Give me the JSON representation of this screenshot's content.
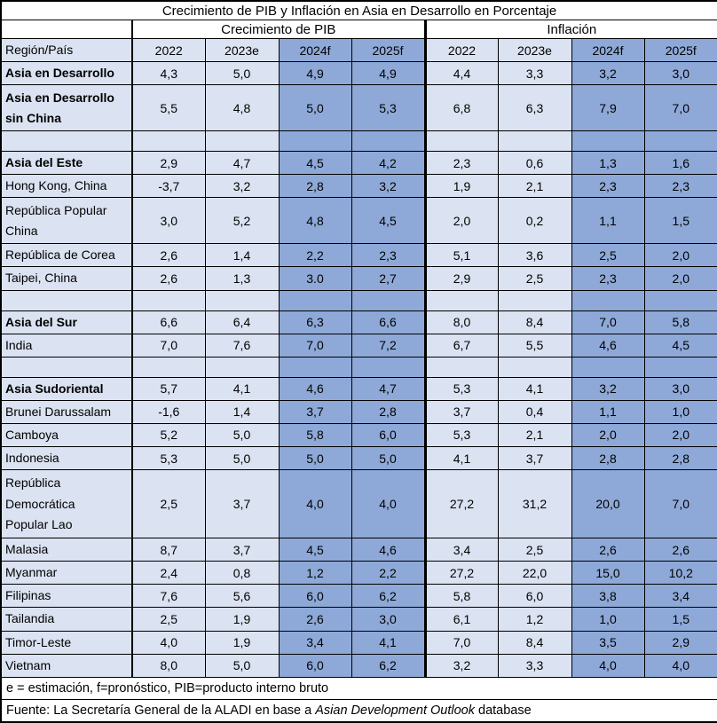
{
  "colors": {
    "light_blue": "#dbe2f1",
    "dark_blue": "#8ea9d8",
    "border": "#000000",
    "background": "#ffffff"
  },
  "chart_data": {
    "type": "table",
    "title": "Crecimiento de PIB y Inflación en Asia en Desarrollo en Porcentaje",
    "group_headers": [
      "Crecimiento de PIB",
      "Inflación"
    ],
    "region_column_header": "Región/País",
    "year_columns": [
      "2022",
      "2023e",
      "2024f",
      "2025f"
    ],
    "rows": [
      {
        "region": "Asia en Desarrollo",
        "bold": true,
        "gdp": [
          "4,3",
          "5,0",
          "4,9",
          "4,9"
        ],
        "inflation": [
          "4,4",
          "3,3",
          "3,2",
          "3,0"
        ]
      },
      {
        "region": "Asia en Desarrollo\nsin China",
        "bold": true,
        "gdp": [
          "5,5",
          "4,8",
          "5,0",
          "5,3"
        ],
        "inflation": [
          "6,8",
          "6,3",
          "7,9",
          "7,0"
        ]
      },
      {
        "region": "",
        "spacer": true,
        "gdp": [
          "",
          "",
          "",
          ""
        ],
        "inflation": [
          "",
          "",
          "",
          ""
        ]
      },
      {
        "region": "Asia del Este",
        "bold": true,
        "gdp": [
          "2,9",
          "4,7",
          "4,5",
          "4,2"
        ],
        "inflation": [
          "2,3",
          "0,6",
          "1,3",
          "1,6"
        ]
      },
      {
        "region": "Hong Kong, China",
        "bold": false,
        "gdp": [
          "-3,7",
          "3,2",
          "2,8",
          "3,2"
        ],
        "inflation": [
          "1,9",
          "2,1",
          "2,3",
          "2,3"
        ]
      },
      {
        "region": "República Popular\nChina",
        "bold": false,
        "gdp": [
          "3,0",
          "5,2",
          "4,8",
          "4,5"
        ],
        "inflation": [
          "2,0",
          "0,2",
          "1,1",
          "1,5"
        ]
      },
      {
        "region": "República de Corea",
        "bold": false,
        "gdp": [
          "2,6",
          "1,4",
          "2,2",
          "2,3"
        ],
        "inflation": [
          "5,1",
          "3,6",
          "2,5",
          "2,0"
        ]
      },
      {
        "region": "Taipei, China",
        "bold": false,
        "gdp": [
          "2,6",
          "1,3",
          "3.0",
          "2,7"
        ],
        "inflation": [
          "2,9",
          "2,5",
          "2,3",
          "2,0"
        ]
      },
      {
        "region": "",
        "spacer": true,
        "gdp": [
          "",
          "",
          "",
          ""
        ],
        "inflation": [
          "",
          "",
          "",
          ""
        ]
      },
      {
        "region": "Asia del Sur",
        "bold": true,
        "gdp": [
          "6,6",
          "6,4",
          "6,3",
          "6,6"
        ],
        "inflation": [
          "8,0",
          "8,4",
          "7,0",
          "5,8"
        ]
      },
      {
        "region": "India",
        "bold": false,
        "gdp": [
          "7,0",
          "7,6",
          "7,0",
          "7,2"
        ],
        "inflation": [
          "6,7",
          "5,5",
          "4,6",
          "4,5"
        ]
      },
      {
        "region": "",
        "spacer": true,
        "gdp": [
          "",
          "",
          "",
          ""
        ],
        "inflation": [
          "",
          "",
          "",
          ""
        ]
      },
      {
        "region": "Asia Sudoriental",
        "bold": true,
        "gdp": [
          "5,7",
          "4,1",
          "4,6",
          "4,7"
        ],
        "inflation": [
          "5,3",
          "4,1",
          "3,2",
          "3,0"
        ]
      },
      {
        "region": "Brunei Darussalam",
        "bold": false,
        "gdp": [
          "-1,6",
          "1,4",
          "3,7",
          "2,8"
        ],
        "inflation": [
          "3,7",
          "0,4",
          "1,1",
          "1,0"
        ]
      },
      {
        "region": "Camboya",
        "bold": false,
        "gdp": [
          "5,2",
          "5,0",
          "5,8",
          "6,0"
        ],
        "inflation": [
          "5,3",
          "2,1",
          "2,0",
          "2,0"
        ]
      },
      {
        "region": "Indonesia",
        "bold": false,
        "gdp": [
          "5,3",
          "5,0",
          "5,0",
          "5,0"
        ],
        "inflation": [
          "4,1",
          "3,7",
          "2,8",
          "2,8"
        ]
      },
      {
        "region": "República\nDemocrática\nPopular Lao",
        "bold": false,
        "gdp": [
          "2,5",
          "3,7",
          "4,0",
          "4,0"
        ],
        "inflation": [
          "27,2",
          "31,2",
          "20,0",
          "7,0"
        ]
      },
      {
        "region": "Malasia",
        "bold": false,
        "gdp": [
          "8,7",
          "3,7",
          "4,5",
          "4,6"
        ],
        "inflation": [
          "3,4",
          "2,5",
          "2,6",
          "2,6"
        ]
      },
      {
        "region": "Myanmar",
        "bold": false,
        "gdp": [
          "2,4",
          "0,8",
          "1,2",
          "2,2"
        ],
        "inflation": [
          "27,2",
          "22,0",
          "15,0",
          "10,2"
        ]
      },
      {
        "region": "Filipinas",
        "bold": false,
        "gdp": [
          "7,6",
          "5,6",
          "6,0",
          "6,2"
        ],
        "inflation": [
          "5,8",
          "6,0",
          "3,8",
          "3,4"
        ]
      },
      {
        "region": "Tailandia",
        "bold": false,
        "gdp": [
          "2,5",
          "1,9",
          "2,6",
          "3,0"
        ],
        "inflation": [
          "6,1",
          "1,2",
          "1,0",
          "1,5"
        ]
      },
      {
        "region": "Timor-Leste",
        "bold": false,
        "gdp": [
          "4,0",
          "1,9",
          "3,4",
          "4,1"
        ],
        "inflation": [
          "7,0",
          "8,4",
          "3,5",
          "2,9"
        ]
      },
      {
        "region": "Vietnam",
        "bold": false,
        "gdp": [
          "8,0",
          "5,0",
          "6,0",
          "6,2"
        ],
        "inflation": [
          "3,2",
          "3,3",
          "4,0",
          "4,0"
        ]
      }
    ],
    "footnote": "e = estimación, f=pronóstico, PIB=producto interno bruto",
    "source": {
      "prefix": "Fuente: La Secretaría General de la ALADI en base a ",
      "italic": "Asian Development Outlook",
      "suffix": " database"
    }
  }
}
